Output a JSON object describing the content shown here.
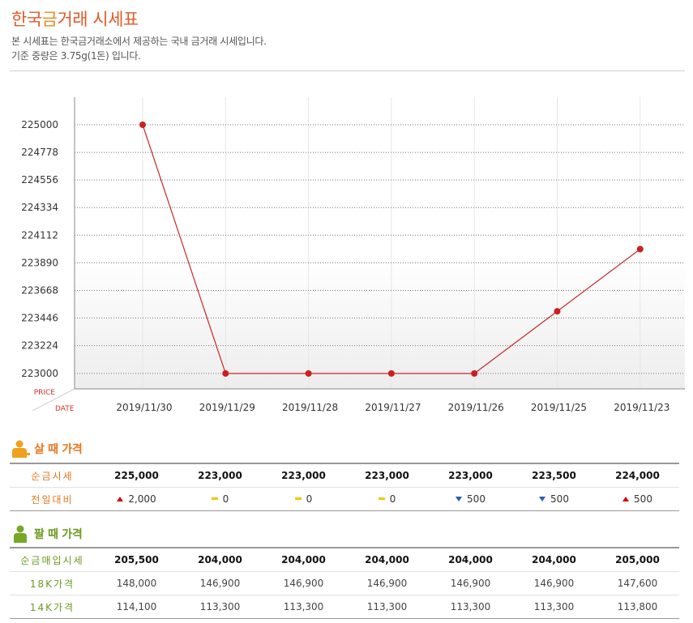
{
  "header": {
    "title_prefix": "한국",
    "title_accent": "금",
    "title_suffix": "거래 시세표",
    "desc_line1": "본 시세표는 한국금거래소에서 제공하는 국내 금거래 시세입니다.",
    "desc_line2": "기준 중량은 3.75g(1돈) 입니다."
  },
  "chart_data": {
    "type": "line",
    "xlabel": "DATE",
    "ylabel": "PRICE",
    "categories": [
      "2019/11/30",
      "2019/11/29",
      "2019/11/28",
      "2019/11/27",
      "2019/11/26",
      "2019/11/25",
      "2019/11/23"
    ],
    "series": [
      {
        "values": [
          225000,
          223000,
          223000,
          223000,
          223000,
          223500,
          224000
        ]
      }
    ],
    "yticks": [
      223000,
      223224,
      223446,
      223668,
      223890,
      224112,
      224334,
      224556,
      224778,
      225000
    ],
    "ylim": [
      223000,
      225000
    ],
    "grid": true,
    "colors": {
      "line": "#c8282a",
      "marker": "#cc1f1f"
    }
  },
  "buy": {
    "title": "살 때 가격",
    "color": "#e8761e",
    "rows": [
      {
        "label": "순금시세",
        "cells": [
          "225,000",
          "223,000",
          "223,000",
          "223,000",
          "223,000",
          "223,500",
          "224,000"
        ]
      },
      {
        "label": "전일대비",
        "cells": [
          {
            "dir": "up",
            "value": "2,000"
          },
          {
            "dir": "flat",
            "value": "0"
          },
          {
            "dir": "flat",
            "value": "0"
          },
          {
            "dir": "flat",
            "value": "0"
          },
          {
            "dir": "down",
            "value": "500"
          },
          {
            "dir": "down",
            "value": "500"
          },
          {
            "dir": "up",
            "value": "500"
          }
        ]
      }
    ]
  },
  "sell": {
    "title": "팔 때 가격",
    "color": "#6a9a1e",
    "rows": [
      {
        "label": "순금매입시세",
        "cells": [
          "205,500",
          "204,000",
          "204,000",
          "204,000",
          "204,000",
          "204,000",
          "205,000"
        ]
      },
      {
        "label": "18K가격",
        "cells": [
          "148,000",
          "146,900",
          "146,900",
          "146,900",
          "146,900",
          "146,900",
          "147,600"
        ]
      },
      {
        "label": "14K가격",
        "cells": [
          "114,100",
          "113,300",
          "113,300",
          "113,300",
          "113,300",
          "113,300",
          "113,800"
        ]
      }
    ]
  }
}
